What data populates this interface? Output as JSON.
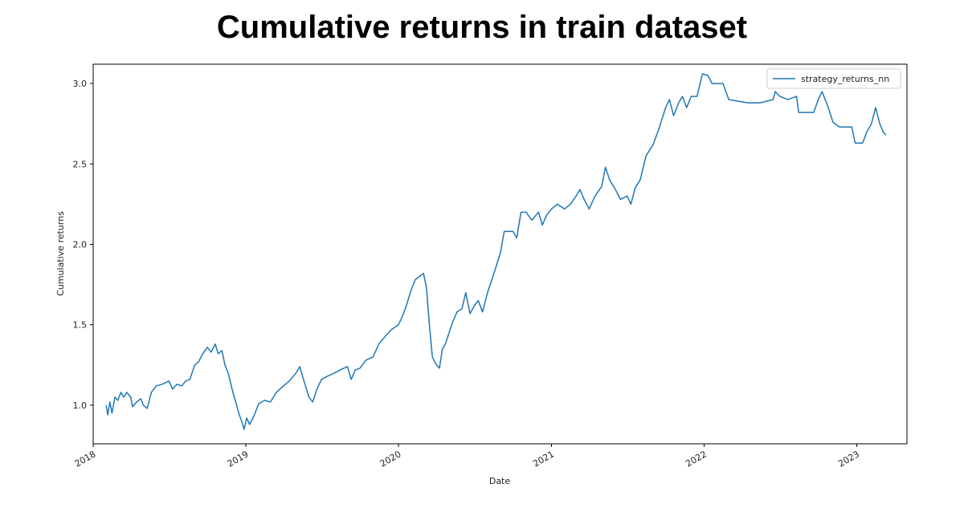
{
  "title": "Cumulative returns in train dataset",
  "chart_data": {
    "type": "line",
    "xlabel": "Date",
    "ylabel": "Cumulative returns",
    "x_type": "date",
    "xlim": [
      "2018-01-01",
      "2023-05-01"
    ],
    "ylim": [
      0.76,
      3.12
    ],
    "xticks": [
      "2018",
      "2019",
      "2020",
      "2021",
      "2022",
      "2023"
    ],
    "yticks": [
      "1.0",
      "1.5",
      "2.0",
      "2.5",
      "3.0"
    ],
    "grid": false,
    "legend_position": "top-right",
    "color": "#1f77b4",
    "series": [
      {
        "name": "strategy_returns_nn",
        "points": [
          [
            "2018-02-01",
            1.0
          ],
          [
            "2018-02-05",
            0.94
          ],
          [
            "2018-02-10",
            1.02
          ],
          [
            "2018-02-15",
            0.95
          ],
          [
            "2018-02-22",
            1.05
          ],
          [
            "2018-03-01",
            1.03
          ],
          [
            "2018-03-08",
            1.08
          ],
          [
            "2018-03-15",
            1.05
          ],
          [
            "2018-03-22",
            1.08
          ],
          [
            "2018-04-01",
            1.05
          ],
          [
            "2018-04-05",
            0.99
          ],
          [
            "2018-04-15",
            1.02
          ],
          [
            "2018-04-25",
            1.04
          ],
          [
            "2018-05-01",
            1.0
          ],
          [
            "2018-05-10",
            0.98
          ],
          [
            "2018-05-20",
            1.08
          ],
          [
            "2018-06-01",
            1.12
          ],
          [
            "2018-06-15",
            1.13
          ],
          [
            "2018-07-01",
            1.15
          ],
          [
            "2018-07-10",
            1.1
          ],
          [
            "2018-07-20",
            1.13
          ],
          [
            "2018-08-01",
            1.12
          ],
          [
            "2018-08-10",
            1.15
          ],
          [
            "2018-08-20",
            1.16
          ],
          [
            "2018-09-01",
            1.25
          ],
          [
            "2018-09-10",
            1.27
          ],
          [
            "2018-09-20",
            1.32
          ],
          [
            "2018-10-01",
            1.36
          ],
          [
            "2018-10-10",
            1.33
          ],
          [
            "2018-10-20",
            1.38
          ],
          [
            "2018-10-27",
            1.32
          ],
          [
            "2018-11-05",
            1.34
          ],
          [
            "2018-11-12",
            1.25
          ],
          [
            "2018-11-20",
            1.2
          ],
          [
            "2018-12-01",
            1.08
          ],
          [
            "2018-12-08",
            1.02
          ],
          [
            "2018-12-15",
            0.95
          ],
          [
            "2018-12-22",
            0.9
          ],
          [
            "2018-12-28",
            0.85
          ],
          [
            "2019-01-03",
            0.92
          ],
          [
            "2019-01-10",
            0.88
          ],
          [
            "2019-01-20",
            0.93
          ],
          [
            "2019-02-01",
            1.01
          ],
          [
            "2019-02-15",
            1.03
          ],
          [
            "2019-03-01",
            1.02
          ],
          [
            "2019-03-15",
            1.08
          ],
          [
            "2019-04-01",
            1.12
          ],
          [
            "2019-04-15",
            1.15
          ],
          [
            "2019-05-01",
            1.2
          ],
          [
            "2019-05-10",
            1.24
          ],
          [
            "2019-05-20",
            1.15
          ],
          [
            "2019-06-01",
            1.05
          ],
          [
            "2019-06-10",
            1.02
          ],
          [
            "2019-06-20",
            1.1
          ],
          [
            "2019-07-01",
            1.16
          ],
          [
            "2019-07-15",
            1.18
          ],
          [
            "2019-08-01",
            1.2
          ],
          [
            "2019-08-15",
            1.22
          ],
          [
            "2019-09-01",
            1.24
          ],
          [
            "2019-09-10",
            1.16
          ],
          [
            "2019-09-20",
            1.22
          ],
          [
            "2019-10-01",
            1.23
          ],
          [
            "2019-10-15",
            1.28
          ],
          [
            "2019-11-01",
            1.3
          ],
          [
            "2019-11-15",
            1.38
          ],
          [
            "2019-12-01",
            1.43
          ],
          [
            "2019-12-15",
            1.47
          ],
          [
            "2020-01-01",
            1.5
          ],
          [
            "2020-01-10",
            1.55
          ],
          [
            "2020-01-20",
            1.62
          ],
          [
            "2020-02-01",
            1.72
          ],
          [
            "2020-02-10",
            1.78
          ],
          [
            "2020-02-20",
            1.8
          ],
          [
            "2020-03-01",
            1.82
          ],
          [
            "2020-03-08",
            1.73
          ],
          [
            "2020-03-15",
            1.5
          ],
          [
            "2020-03-22",
            1.3
          ],
          [
            "2020-04-01",
            1.25
          ],
          [
            "2020-04-08",
            1.23
          ],
          [
            "2020-04-15",
            1.35
          ],
          [
            "2020-04-22",
            1.38
          ],
          [
            "2020-05-01",
            1.45
          ],
          [
            "2020-05-10",
            1.52
          ],
          [
            "2020-05-20",
            1.58
          ],
          [
            "2020-06-01",
            1.6
          ],
          [
            "2020-06-10",
            1.7
          ],
          [
            "2020-06-20",
            1.57
          ],
          [
            "2020-07-01",
            1.62
          ],
          [
            "2020-07-10",
            1.65
          ],
          [
            "2020-07-20",
            1.58
          ],
          [
            "2020-08-01",
            1.7
          ],
          [
            "2020-08-10",
            1.77
          ],
          [
            "2020-08-20",
            1.85
          ],
          [
            "2020-09-01",
            1.95
          ],
          [
            "2020-09-10",
            2.08
          ],
          [
            "2020-10-01",
            2.08
          ],
          [
            "2020-10-10",
            2.04
          ],
          [
            "2020-10-20",
            2.2
          ],
          [
            "2020-11-01",
            2.2
          ],
          [
            "2020-11-15",
            2.15
          ],
          [
            "2020-12-01",
            2.2
          ],
          [
            "2020-12-10",
            2.12
          ],
          [
            "2020-12-20",
            2.18
          ],
          [
            "2021-01-01",
            2.22
          ],
          [
            "2021-01-15",
            2.25
          ],
          [
            "2021-02-01",
            2.22
          ],
          [
            "2021-02-15",
            2.25
          ],
          [
            "2021-03-01",
            2.3
          ],
          [
            "2021-03-10",
            2.34
          ],
          [
            "2021-03-20",
            2.28
          ],
          [
            "2021-04-01",
            2.22
          ],
          [
            "2021-04-15",
            2.3
          ],
          [
            "2021-05-01",
            2.36
          ],
          [
            "2021-05-10",
            2.48
          ],
          [
            "2021-05-20",
            2.4
          ],
          [
            "2021-06-01",
            2.35
          ],
          [
            "2021-06-15",
            2.28
          ],
          [
            "2021-07-01",
            2.3
          ],
          [
            "2021-07-10",
            2.25
          ],
          [
            "2021-07-20",
            2.35
          ],
          [
            "2021-08-01",
            2.4
          ],
          [
            "2021-08-15",
            2.55
          ],
          [
            "2021-09-01",
            2.62
          ],
          [
            "2021-09-15",
            2.72
          ],
          [
            "2021-10-01",
            2.85
          ],
          [
            "2021-10-10",
            2.9
          ],
          [
            "2021-10-20",
            2.8
          ],
          [
            "2021-11-01",
            2.88
          ],
          [
            "2021-11-10",
            2.92
          ],
          [
            "2021-11-20",
            2.85
          ],
          [
            "2021-12-01",
            2.92
          ],
          [
            "2021-12-15",
            2.92
          ],
          [
            "2021-12-28",
            3.06
          ],
          [
            "2022-01-10",
            3.05
          ],
          [
            "2022-01-20",
            3.0
          ],
          [
            "2022-02-15",
            3.0
          ],
          [
            "2022-03-01",
            2.9
          ],
          [
            "2022-04-15",
            2.88
          ],
          [
            "2022-05-15",
            2.88
          ],
          [
            "2022-06-15",
            2.9
          ],
          [
            "2022-06-20",
            2.95
          ],
          [
            "2022-07-01",
            2.92
          ],
          [
            "2022-07-20",
            2.9
          ],
          [
            "2022-08-10",
            2.92
          ],
          [
            "2022-08-15",
            2.82
          ],
          [
            "2022-09-20",
            2.82
          ],
          [
            "2022-10-01",
            2.9
          ],
          [
            "2022-10-10",
            2.95
          ],
          [
            "2022-10-25",
            2.85
          ],
          [
            "2022-11-05",
            2.76
          ],
          [
            "2022-11-20",
            2.73
          ],
          [
            "2022-12-20",
            2.73
          ],
          [
            "2022-12-28",
            2.63
          ],
          [
            "2023-01-15",
            2.63
          ],
          [
            "2023-01-25",
            2.7
          ],
          [
            "2023-02-05",
            2.75
          ],
          [
            "2023-02-15",
            2.85
          ],
          [
            "2023-02-25",
            2.75
          ],
          [
            "2023-03-05",
            2.7
          ],
          [
            "2023-03-12",
            2.68
          ]
        ]
      }
    ]
  }
}
